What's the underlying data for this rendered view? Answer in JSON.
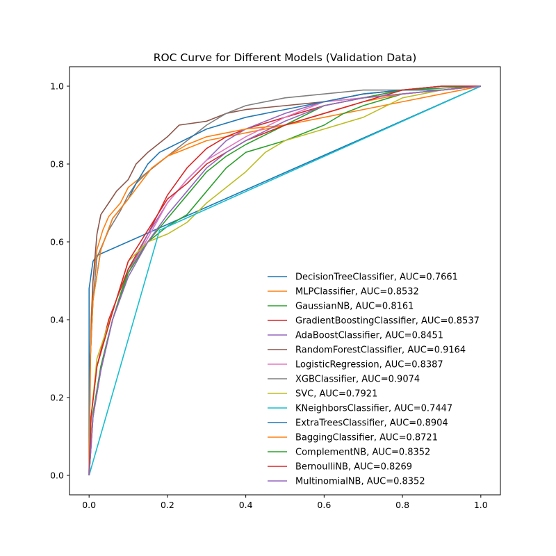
{
  "chart_data": {
    "type": "line",
    "title": "ROC Curve for Different Models (Validation Data)",
    "xlabel": "",
    "ylabel": "",
    "xlim": [
      -0.05,
      1.05
    ],
    "ylim": [
      -0.05,
      1.05
    ],
    "grid": false,
    "legend_position": "lower-right",
    "x_ticks": [
      "0.0",
      "0.2",
      "0.4",
      "0.6",
      "0.8",
      "1.0"
    ],
    "y_ticks": [
      "0.0",
      "0.2",
      "0.4",
      "0.6",
      "0.8",
      "1.0"
    ],
    "series": [
      {
        "name": "DecisionTreeClassifier, AUC=0.7661",
        "color": "#1f77b4",
        "points": [
          [
            0,
            0
          ],
          [
            0.0,
            0.48
          ],
          [
            0.01,
            0.55
          ],
          [
            0.02,
            0.565
          ],
          [
            1,
            1
          ]
        ]
      },
      {
        "name": "MLPClassifier, AUC=0.8532",
        "color": "#ff7f0e",
        "points": [
          [
            0,
            0
          ],
          [
            0.005,
            0.4
          ],
          [
            0.01,
            0.5
          ],
          [
            0.02,
            0.58
          ],
          [
            0.035,
            0.63
          ],
          [
            0.05,
            0.665
          ],
          [
            0.08,
            0.7
          ],
          [
            0.1,
            0.74
          ],
          [
            0.15,
            0.78
          ],
          [
            0.2,
            0.82
          ],
          [
            0.3,
            0.86
          ],
          [
            0.4,
            0.88
          ],
          [
            0.5,
            0.9
          ],
          [
            0.6,
            0.92
          ],
          [
            0.7,
            0.94
          ],
          [
            0.8,
            0.96
          ],
          [
            0.9,
            0.98
          ],
          [
            1,
            1
          ]
        ]
      },
      {
        "name": "GaussianNB, AUC=0.8161",
        "color": "#2ca02c",
        "points": [
          [
            0,
            0
          ],
          [
            0.01,
            0.15
          ],
          [
            0.03,
            0.28
          ],
          [
            0.06,
            0.4
          ],
          [
            0.1,
            0.53
          ],
          [
            0.15,
            0.6
          ],
          [
            0.2,
            0.64
          ],
          [
            0.25,
            0.67
          ],
          [
            0.3,
            0.73
          ],
          [
            0.35,
            0.79
          ],
          [
            0.4,
            0.83
          ],
          [
            0.5,
            0.86
          ],
          [
            0.6,
            0.9
          ],
          [
            0.65,
            0.93
          ],
          [
            0.7,
            0.95
          ],
          [
            0.8,
            0.98
          ],
          [
            1,
            1
          ]
        ]
      },
      {
        "name": "GradientBoostingClassifier, AUC=0.8537",
        "color": "#d62728",
        "points": [
          [
            0,
            0
          ],
          [
            0.005,
            0.15
          ],
          [
            0.02,
            0.28
          ],
          [
            0.05,
            0.4
          ],
          [
            0.1,
            0.53
          ],
          [
            0.15,
            0.62
          ],
          [
            0.2,
            0.72
          ],
          [
            0.25,
            0.79
          ],
          [
            0.3,
            0.84
          ],
          [
            0.35,
            0.87
          ],
          [
            0.4,
            0.89
          ],
          [
            0.5,
            0.92
          ],
          [
            0.6,
            0.95
          ],
          [
            0.7,
            0.97
          ],
          [
            0.8,
            0.99
          ],
          [
            0.9,
            1
          ],
          [
            1,
            1
          ]
        ]
      },
      {
        "name": "AdaBoostClassifier, AUC=0.8451",
        "color": "#9467bd",
        "points": [
          [
            0,
            0
          ],
          [
            0.01,
            0.15
          ],
          [
            0.03,
            0.27
          ],
          [
            0.06,
            0.4
          ],
          [
            0.1,
            0.52
          ],
          [
            0.15,
            0.62
          ],
          [
            0.2,
            0.7
          ],
          [
            0.25,
            0.76
          ],
          [
            0.3,
            0.81
          ],
          [
            0.35,
            0.86
          ],
          [
            0.4,
            0.89
          ],
          [
            0.5,
            0.93
          ],
          [
            0.6,
            0.96
          ],
          [
            0.7,
            0.97
          ],
          [
            0.8,
            0.98
          ],
          [
            1,
            1
          ]
        ]
      },
      {
        "name": "RandomForestClassifier, AUC=0.9164",
        "color": "#8c564b",
        "points": [
          [
            0,
            0
          ],
          [
            0.003,
            0.3
          ],
          [
            0.01,
            0.5
          ],
          [
            0.02,
            0.62
          ],
          [
            0.03,
            0.67
          ],
          [
            0.05,
            0.7
          ],
          [
            0.07,
            0.73
          ],
          [
            0.1,
            0.76
          ],
          [
            0.12,
            0.8
          ],
          [
            0.15,
            0.83
          ],
          [
            0.2,
            0.87
          ],
          [
            0.23,
            0.9
          ],
          [
            0.3,
            0.91
          ],
          [
            0.35,
            0.93
          ],
          [
            0.4,
            0.94
          ],
          [
            0.5,
            0.95
          ],
          [
            0.6,
            0.96
          ],
          [
            0.7,
            0.98
          ],
          [
            0.8,
            0.99
          ],
          [
            0.9,
            1
          ],
          [
            1,
            1
          ]
        ]
      },
      {
        "name": "LogisticRegression, AUC=0.8387",
        "color": "#e377c2",
        "points": [
          [
            0,
            0
          ],
          [
            0.01,
            0.15
          ],
          [
            0.03,
            0.27
          ],
          [
            0.06,
            0.4
          ],
          [
            0.1,
            0.52
          ],
          [
            0.15,
            0.61
          ],
          [
            0.2,
            0.7
          ],
          [
            0.25,
            0.76
          ],
          [
            0.3,
            0.81
          ],
          [
            0.35,
            0.84
          ],
          [
            0.4,
            0.87
          ],
          [
            0.5,
            0.92
          ],
          [
            0.6,
            0.96
          ],
          [
            0.7,
            0.97
          ],
          [
            0.8,
            0.98
          ],
          [
            1,
            1
          ]
        ]
      },
      {
        "name": "XGBClassifier, AUC=0.9074",
        "color": "#7f7f7f",
        "points": [
          [
            0,
            0
          ],
          [
            0.003,
            0.3
          ],
          [
            0.01,
            0.45
          ],
          [
            0.02,
            0.56
          ],
          [
            0.05,
            0.63
          ],
          [
            0.08,
            0.68
          ],
          [
            0.1,
            0.72
          ],
          [
            0.12,
            0.75
          ],
          [
            0.15,
            0.78
          ],
          [
            0.2,
            0.82
          ],
          [
            0.25,
            0.86
          ],
          [
            0.3,
            0.9
          ],
          [
            0.35,
            0.93
          ],
          [
            0.4,
            0.95
          ],
          [
            0.5,
            0.97
          ],
          [
            0.6,
            0.98
          ],
          [
            0.7,
            0.99
          ],
          [
            0.8,
            0.99
          ],
          [
            0.9,
            1
          ],
          [
            1,
            1
          ]
        ]
      },
      {
        "name": "SVC, AUC=0.7921",
        "color": "#bcbd22",
        "points": [
          [
            0,
            0
          ],
          [
            0.005,
            0.15
          ],
          [
            0.02,
            0.3
          ],
          [
            0.06,
            0.42
          ],
          [
            0.1,
            0.55
          ],
          [
            0.15,
            0.6
          ],
          [
            0.2,
            0.62
          ],
          [
            0.25,
            0.65
          ],
          [
            0.3,
            0.7
          ],
          [
            0.35,
            0.74
          ],
          [
            0.4,
            0.78
          ],
          [
            0.45,
            0.83
          ],
          [
            0.5,
            0.86
          ],
          [
            0.6,
            0.89
          ],
          [
            0.7,
            0.92
          ],
          [
            0.8,
            0.97
          ],
          [
            0.9,
            0.99
          ],
          [
            1,
            1
          ]
        ]
      },
      {
        "name": "KNeighborsClassifier, AUC=0.7447",
        "color": "#17becf",
        "points": [
          [
            0,
            0
          ],
          [
            0.18,
            0.63
          ],
          [
            1,
            1
          ]
        ]
      },
      {
        "name": "ExtraTreesClassifier, AUC=0.8904",
        "color": "#1f77b4",
        "points": [
          [
            0,
            0
          ],
          [
            0.003,
            0.3
          ],
          [
            0.01,
            0.45
          ],
          [
            0.03,
            0.58
          ],
          [
            0.06,
            0.66
          ],
          [
            0.1,
            0.71
          ],
          [
            0.12,
            0.75
          ],
          [
            0.15,
            0.8
          ],
          [
            0.18,
            0.83
          ],
          [
            0.2,
            0.84
          ],
          [
            0.3,
            0.89
          ],
          [
            0.4,
            0.92
          ],
          [
            0.5,
            0.94
          ],
          [
            0.6,
            0.96
          ],
          [
            0.7,
            0.98
          ],
          [
            0.8,
            0.99
          ],
          [
            0.9,
            0.99
          ],
          [
            1,
            1
          ]
        ]
      },
      {
        "name": "BaggingClassifier, AUC=0.8721",
        "color": "#ff7f0e",
        "points": [
          [
            0,
            0
          ],
          [
            0.003,
            0.3
          ],
          [
            0.01,
            0.45
          ],
          [
            0.03,
            0.58
          ],
          [
            0.06,
            0.66
          ],
          [
            0.1,
            0.71
          ],
          [
            0.13,
            0.75
          ],
          [
            0.16,
            0.79
          ],
          [
            0.2,
            0.82
          ],
          [
            0.25,
            0.85
          ],
          [
            0.3,
            0.87
          ],
          [
            0.35,
            0.88
          ],
          [
            0.4,
            0.89
          ],
          [
            0.5,
            0.9
          ],
          [
            0.6,
            0.93
          ],
          [
            0.7,
            0.96
          ],
          [
            0.8,
            0.98
          ],
          [
            0.9,
            0.99
          ],
          [
            1,
            1
          ]
        ]
      },
      {
        "name": "ComplementNB, AUC=0.8352",
        "color": "#2ca02c",
        "points": [
          [
            0,
            0
          ],
          [
            0.01,
            0.16
          ],
          [
            0.03,
            0.28
          ],
          [
            0.06,
            0.4
          ],
          [
            0.1,
            0.52
          ],
          [
            0.15,
            0.6
          ],
          [
            0.2,
            0.66
          ],
          [
            0.25,
            0.72
          ],
          [
            0.3,
            0.78
          ],
          [
            0.35,
            0.82
          ],
          [
            0.4,
            0.85
          ],
          [
            0.5,
            0.9
          ],
          [
            0.6,
            0.95
          ],
          [
            0.7,
            0.97
          ],
          [
            0.8,
            0.99
          ],
          [
            1,
            1
          ]
        ]
      },
      {
        "name": "BernoulliNB, AUC=0.8269",
        "color": "#d62728",
        "points": [
          [
            0,
            0
          ],
          [
            0.005,
            0.15
          ],
          [
            0.02,
            0.28
          ],
          [
            0.06,
            0.42
          ],
          [
            0.1,
            0.55
          ],
          [
            0.15,
            0.63
          ],
          [
            0.2,
            0.71
          ],
          [
            0.25,
            0.75
          ],
          [
            0.3,
            0.8
          ],
          [
            0.35,
            0.83
          ],
          [
            0.4,
            0.86
          ],
          [
            0.5,
            0.9
          ],
          [
            0.6,
            0.93
          ],
          [
            0.7,
            0.96
          ],
          [
            0.8,
            0.99
          ],
          [
            0.9,
            1
          ],
          [
            1,
            1
          ]
        ]
      },
      {
        "name": "MultinomialNB, AUC=0.8352",
        "color": "#9467bd",
        "points": [
          [
            0,
            0
          ],
          [
            0.01,
            0.15
          ],
          [
            0.03,
            0.27
          ],
          [
            0.06,
            0.4
          ],
          [
            0.1,
            0.51
          ],
          [
            0.15,
            0.6
          ],
          [
            0.2,
            0.67
          ],
          [
            0.25,
            0.73
          ],
          [
            0.3,
            0.79
          ],
          [
            0.35,
            0.83
          ],
          [
            0.4,
            0.86
          ],
          [
            0.5,
            0.91
          ],
          [
            0.6,
            0.95
          ],
          [
            0.7,
            0.97
          ],
          [
            0.8,
            0.98
          ],
          [
            1,
            1
          ]
        ]
      }
    ]
  }
}
